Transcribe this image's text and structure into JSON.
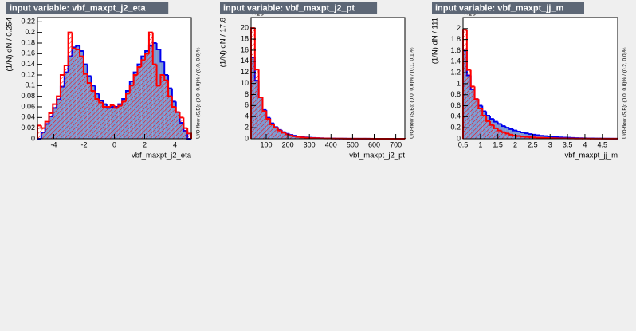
{
  "chart_data": [
    {
      "type": "histogram",
      "title": "input variable: vbf_maxpt_j2_eta",
      "y_label": "(1/N) dN / 0.254",
      "x_label": "vbf_maxpt_j2_eta",
      "overflow_label": "U/O-flow (S,B): (0.0, 0.0)% / (0.0, 0.0)%",
      "bins": [
        -5.08,
        -4.826,
        -4.572,
        -4.318,
        -4.064,
        -3.81,
        -3.556,
        -3.302,
        -3.048,
        -2.794,
        -2.54,
        -2.286,
        -2.032,
        -1.778,
        -1.524,
        -1.27,
        -1.016,
        -0.762,
        -0.508,
        -0.254,
        0,
        0.254,
        0.508,
        0.762,
        1.016,
        1.27,
        1.524,
        1.778,
        2.032,
        2.286,
        2.54,
        2.794,
        3.048,
        3.302,
        3.556,
        3.81,
        4.064,
        4.318,
        4.572,
        4.826,
        5.08
      ],
      "series": [
        {
          "color": "#0000ee",
          "fill": "#7d99d1",
          "values": [
            0,
            0.012,
            0.028,
            0.042,
            0.058,
            0.074,
            0.098,
            0.125,
            0.155,
            0.172,
            0.175,
            0.165,
            0.14,
            0.118,
            0.1,
            0.085,
            0.072,
            0.065,
            0.058,
            0.06,
            0.06,
            0.065,
            0.075,
            0.09,
            0.108,
            0.125,
            0.14,
            0.155,
            0.165,
            0.175,
            0.18,
            0.168,
            0.145,
            0.12,
            0.095,
            0.07,
            0.05,
            0.03,
            0.015,
            0
          ]
        },
        {
          "color": "#ff0000",
          "hatch": true,
          "values": [
            0.025,
            0.02,
            0.032,
            0.048,
            0.065,
            0.08,
            0.12,
            0.138,
            0.2,
            0.17,
            0.168,
            0.155,
            0.122,
            0.105,
            0.09,
            0.075,
            0.068,
            0.06,
            0.06,
            0.063,
            0.058,
            0.062,
            0.07,
            0.085,
            0.1,
            0.12,
            0.135,
            0.148,
            0.16,
            0.2,
            0.14,
            0.1,
            0.12,
            0.11,
            0.08,
            0.06,
            0.05,
            0.04,
            0.02,
            0.01
          ]
        }
      ],
      "xlim": [
        -5.08,
        5.08
      ],
      "ylim": [
        0,
        0.228
      ],
      "xticks": [
        -4,
        -2,
        0,
        2,
        4
      ],
      "yticks": [
        0,
        0.02,
        0.04,
        0.06,
        0.08,
        0.1,
        0.12,
        0.14,
        0.16,
        0.18,
        0.2,
        0.22
      ]
    },
    {
      "type": "histogram",
      "title": "input variable: vbf_maxpt_j2_pt",
      "y_label": "(1/N) dN / 17.8",
      "x_label": "vbf_maxpt_j2_pt",
      "overflow_label": "U/O-flow (S,B): (0.0, 0.0)% / (0.1, 0.1)%",
      "y_multiplier": "×10⁻³",
      "bins": [
        30,
        47.8,
        65.6,
        83.4,
        101.2,
        119,
        136.8,
        154.6,
        172.4,
        190.2,
        208,
        225.8,
        243.6,
        261.4,
        279.2,
        297,
        314.8,
        332.6,
        350.4,
        368.2,
        386,
        403.8,
        421.6,
        439.4,
        457.2,
        475,
        492.8,
        510.6,
        528.4,
        546.2,
        564,
        581.8,
        599.6,
        617.4,
        635.2,
        653,
        670.8,
        688.6,
        706.4,
        724.2,
        742
      ],
      "series": [
        {
          "color": "#0000ee",
          "fill": "#7d99d1",
          "values": [
            14.7,
            10.5,
            7.5,
            5.2,
            3.8,
            2.8,
            2.1,
            1.6,
            1.2,
            0.9,
            0.7,
            0.55,
            0.42,
            0.33,
            0.26,
            0.2,
            0.16,
            0.13,
            0.1,
            0.08,
            0.065,
            0.05,
            0.04,
            0.035,
            0.03,
            0.025,
            0.02,
            0.017,
            0.014,
            0.012,
            0.01,
            0.008,
            0.007,
            0.006,
            0.005,
            0.004,
            0.003,
            0.003,
            0.002,
            0.002
          ]
        },
        {
          "color": "#ff0000",
          "hatch": true,
          "values": [
            20,
            12.5,
            7.5,
            5,
            3.6,
            2.6,
            2,
            1.5,
            1.1,
            0.8,
            0.6,
            0.45,
            0.35,
            0.25,
            0.2,
            0.15,
            0.12,
            0.1,
            0.08,
            0.06,
            0.05,
            0.04,
            0.035,
            0.03,
            0.025,
            0.02,
            0.02,
            0.015,
            0.015,
            0.01,
            0.01,
            0.01,
            0.008,
            0.006,
            0.005,
            0.004,
            0.003,
            0.002,
            0.002,
            0.001
          ]
        }
      ],
      "xlim": [
        30,
        742
      ],
      "ylim": [
        0,
        21.9
      ],
      "xticks": [
        100,
        200,
        300,
        400,
        500,
        600,
        700
      ],
      "yticks": [
        0,
        2,
        4,
        6,
        8,
        10,
        12,
        14,
        16,
        18,
        20
      ]
    },
    {
      "type": "histogram",
      "title": "input variable: vbf_maxpt_jj_m",
      "y_label": "(1/N) dN / 111",
      "x_label": "vbf_maxpt_jj_m",
      "overflow_label": "U/O-flow (S,B): (0.0, 0.0)% / (0.2, 0.0)%",
      "y_multiplier": "×10⁻³",
      "bins": [
        0.5,
        0.611,
        0.722,
        0.833,
        0.944,
        1.055,
        1.166,
        1.277,
        1.388,
        1.499,
        1.61,
        1.721,
        1.832,
        1.943,
        2.054,
        2.165,
        2.276,
        2.387,
        2.498,
        2.609,
        2.72,
        2.831,
        2.942,
        3.053,
        3.164,
        3.275,
        3.386,
        3.497,
        3.608,
        3.719,
        3.83,
        3.941,
        4.052,
        4.163,
        4.274,
        4.385,
        4.496,
        4.607,
        4.718,
        4.829,
        4.94
      ],
      "series": [
        {
          "color": "#0000ee",
          "fill": "#7d99d1",
          "values": [
            1.6,
            1.15,
            0.9,
            0.72,
            0.6,
            0.5,
            0.42,
            0.36,
            0.31,
            0.27,
            0.23,
            0.2,
            0.175,
            0.15,
            0.13,
            0.115,
            0.1,
            0.085,
            0.075,
            0.065,
            0.055,
            0.048,
            0.042,
            0.036,
            0.03,
            0.026,
            0.022,
            0.019,
            0.016,
            0.013,
            0.011,
            0.009,
            0.008,
            0.007,
            0.006,
            0.005,
            0.004,
            0.003,
            0.003,
            0.002
          ]
        },
        {
          "color": "#ff0000",
          "hatch": true,
          "values": [
            1.98,
            1.25,
            0.95,
            0.72,
            0.55,
            0.42,
            0.32,
            0.25,
            0.19,
            0.15,
            0.12,
            0.095,
            0.075,
            0.06,
            0.05,
            0.04,
            0.035,
            0.03,
            0.025,
            0.02,
            0.018,
            0.015,
            0.012,
            0.01,
            0.009,
            0.008,
            0.007,
            0.006,
            0.005,
            0.004,
            0.004,
            0.003,
            0.003,
            0.002,
            0.002,
            0.002,
            0.001,
            0.001,
            0.001,
            0.001
          ]
        }
      ],
      "xlim": [
        0.5,
        4.94
      ],
      "ylim": [
        0,
        2.2
      ],
      "xticks": [
        0.5,
        1,
        1.5,
        2,
        2.5,
        3,
        3.5,
        4,
        4.5
      ],
      "yticks": [
        0,
        0.2,
        0.4,
        0.6,
        0.8,
        1,
        1.2,
        1.4,
        1.6,
        1.8,
        2
      ]
    }
  ]
}
